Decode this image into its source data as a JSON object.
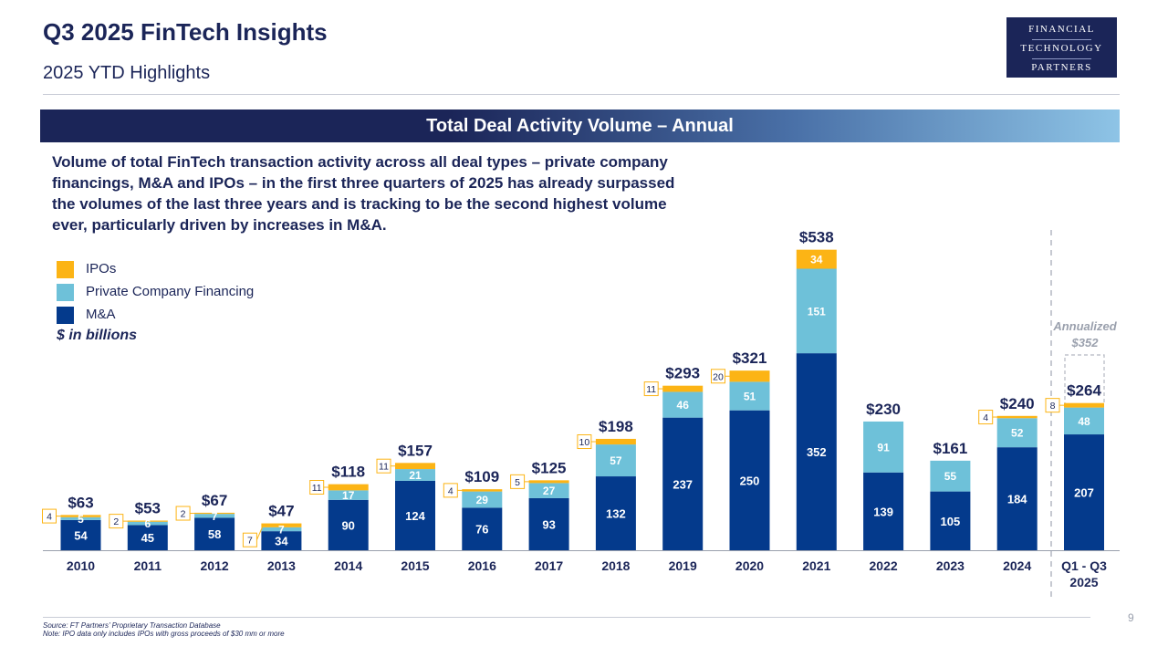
{
  "header": {
    "title": "Q3 2025 FinTech Insights",
    "subtitle": "2025 YTD Highlights"
  },
  "logo": {
    "line1": "FINANCIAL",
    "line2": "TECHNOLOGY",
    "line3": "PARTNERS"
  },
  "banner": {
    "title": "Total Deal Activity Volume – Annual"
  },
  "description": "Volume of total FinTech transaction activity across all deal types – private company financings, M&A and IPOs – in the first three quarters of 2025 has already surpassed the volumes of the last three years and is tracking to be the second highest volume ever, particularly driven by increases in M&A.",
  "legend": {
    "items": [
      {
        "label": "IPOs",
        "color": "#fcb415"
      },
      {
        "label": "Private Company Financing",
        "color": "#6ec1d9"
      },
      {
        "label": "M&A",
        "color": "#043a8c"
      }
    ],
    "unit_note": "$ in billions"
  },
  "annualized": {
    "label": "Annualized",
    "value": "$352"
  },
  "chart_data": {
    "type": "bar",
    "stacked": true,
    "title": "Total Deal Activity Volume – Annual",
    "categories": [
      "2010",
      "2011",
      "2012",
      "2013",
      "2014",
      "2015",
      "2016",
      "2017",
      "2018",
      "2019",
      "2020",
      "2021",
      "2022",
      "2023",
      "2024",
      "Q1 - Q3 2025"
    ],
    "series": [
      {
        "name": "M&A",
        "color": "#043a8c",
        "values": [
          54,
          45,
          58,
          34,
          90,
          124,
          76,
          93,
          132,
          237,
          250,
          352,
          139,
          105,
          184,
          207
        ]
      },
      {
        "name": "Private Company Financing",
        "color": "#6ec1d9",
        "values": [
          5,
          6,
          7,
          7,
          17,
          21,
          29,
          27,
          57,
          46,
          51,
          151,
          91,
          55,
          52,
          48
        ]
      },
      {
        "name": "IPOs",
        "color": "#fcb415",
        "values": [
          4,
          2,
          2,
          7,
          11,
          11,
          4,
          5,
          10,
          11,
          20,
          34,
          0,
          0,
          4,
          8
        ]
      }
    ],
    "totals": [
      "$63",
      "$53",
      "$67",
      "$47",
      "$118",
      "$157",
      "$109",
      "$125",
      "$198",
      "$293",
      "$321",
      "$538",
      "$230",
      "$161",
      "$240",
      "$264"
    ],
    "unit": "$ in billions",
    "ylim": [
      0,
      560
    ]
  },
  "footer": {
    "source": "Source: FT Partners’ Proprietary Transaction Database",
    "note": "Note: IPO data only includes IPOs with gross proceeds of $30 mm or more"
  },
  "page_number": "9"
}
